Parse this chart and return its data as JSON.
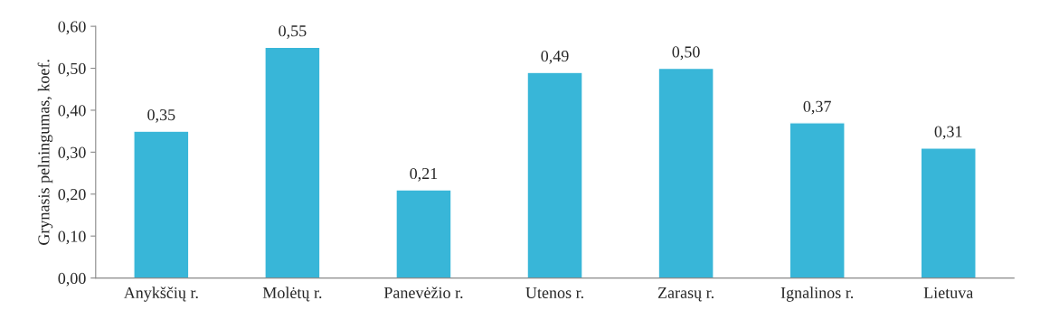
{
  "chart_data": {
    "type": "bar",
    "ylabel": "Grynasis pelningumas, koef.",
    "categories": [
      "Anykščių r.",
      "Molėtų r.",
      "Panevėžio r.",
      "Utenos r.",
      "Zarasų r.",
      "Ignalinos r.",
      "Lietuva"
    ],
    "values": [
      0.35,
      0.55,
      0.21,
      0.49,
      0.5,
      0.37,
      0.31
    ],
    "value_labels": [
      "0,35",
      "0,55",
      "0,21",
      "0,49",
      "0,50",
      "0,37",
      "0,31"
    ],
    "color": "#38b6d8",
    "ylim": [
      0,
      0.6
    ],
    "yticks": [
      {
        "value": 0,
        "label": "0,00"
      },
      {
        "value": 0.1,
        "label": "0,10"
      },
      {
        "value": 0.2,
        "label": "0,20"
      },
      {
        "value": 0.3,
        "label": "0,30"
      },
      {
        "value": 0.4,
        "label": "0,40"
      },
      {
        "value": 0.5,
        "label": "0,50"
      },
      {
        "value": 0.6,
        "label": "0,60"
      }
    ],
    "grid": false,
    "legend": false
  }
}
